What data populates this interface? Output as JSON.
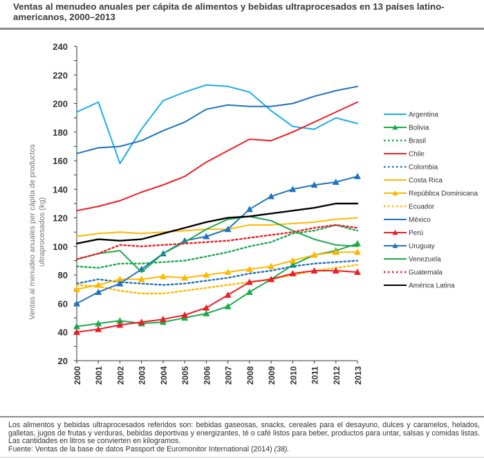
{
  "title": "Ventas al menudeo anuales per cápita de alimentos y bebidas ultraprocesados en 13 países latino-americanos, 2000–2013",
  "footnote": {
    "text": "Los alimentos y bebidas ultraprocesados referidos son: bebidas gaseosas, snacks, cereales para el desayuno, dulces y caramelos, helados, galletas, jugos de frutas y verduras, bebidas deportivas y energizantes, té o café listos para beber, productos para untar, salsas y comidas listas. Las cantidades en litros se convierten en kilogramos.",
    "source": "Fuente: Ventas de la base de datos Passport de Euromonitor International (2014)",
    "ref": "(38)."
  },
  "chart_data": {
    "type": "line",
    "title": "Ventas al menudeo anuales per cápita de alimentos y bebidas ultraprocesados en 13 países latino-americanos, 2000–2013",
    "xlabel": "",
    "ylabel": "Ventas al menudeo anuales per cápita de productos ultraprocesados (kg)",
    "ylim": [
      20,
      240
    ],
    "yticks": [
      20,
      40,
      60,
      80,
      100,
      120,
      140,
      160,
      180,
      200,
      220,
      240
    ],
    "grid": false,
    "legend": "right",
    "x": [
      "2000",
      "2001",
      "2002",
      "2003",
      "2004",
      "2005",
      "2006",
      "2007",
      "2008",
      "2009",
      "2010",
      "2011",
      "2012",
      "2013"
    ],
    "series": [
      {
        "name": "Argentina",
        "color": "#1BADEA",
        "style": "solid",
        "marker": "none",
        "values": [
          194,
          201,
          158,
          182,
          202,
          208,
          213,
          212,
          208,
          195,
          184,
          182,
          190,
          186
        ]
      },
      {
        "name": "Bolivia",
        "color": "#1AAA4B",
        "style": "solid",
        "marker": "triangle",
        "values": [
          44,
          46,
          48,
          46,
          47,
          50,
          53,
          58,
          68,
          77,
          87,
          94,
          97,
          102
        ]
      },
      {
        "name": "Brasil",
        "color": "#1AAA4B",
        "style": "dotted",
        "marker": "none",
        "values": [
          86,
          85,
          88,
          88,
          89,
          90,
          93,
          96,
          100,
          103,
          109,
          111,
          115,
          111
        ]
      },
      {
        "name": "Chile",
        "color": "#EE1C24",
        "style": "solid",
        "marker": "none",
        "values": [
          125,
          128,
          132,
          138,
          143,
          149,
          159,
          167,
          175,
          174,
          180,
          187,
          194,
          201
        ]
      },
      {
        "name": "Colombia",
        "color": "#1E73BE",
        "style": "dotted",
        "marker": "none",
        "values": [
          74,
          77,
          75,
          74,
          73,
          74,
          76,
          78,
          81,
          83,
          86,
          88,
          89,
          90
        ]
      },
      {
        "name": "Costa Rica",
        "color": "#FFB800",
        "style": "solid",
        "marker": "none",
        "values": [
          107,
          109,
          110,
          109,
          110,
          111,
          112,
          112,
          115,
          115,
          116,
          117,
          119,
          120
        ]
      },
      {
        "name": "República Dominicana",
        "color": "#FFB800",
        "style": "solid",
        "marker": "triangle",
        "values": [
          70,
          73,
          77,
          77,
          79,
          78,
          80,
          82,
          84,
          86,
          90,
          94,
          96,
          96
        ]
      },
      {
        "name": "Ecuador",
        "color": "#FFB800",
        "style": "dotted",
        "marker": "none",
        "values": [
          73,
          72,
          69,
          67,
          67,
          69,
          71,
          73,
          75,
          77,
          80,
          83,
          85,
          87
        ]
      },
      {
        "name": "México",
        "color": "#1E73BE",
        "style": "solid",
        "marker": "none",
        "values": [
          165,
          169,
          170,
          174,
          181,
          187,
          196,
          199,
          198,
          198,
          200,
          205,
          209,
          212
        ]
      },
      {
        "name": "Perú",
        "color": "#EE1C24",
        "style": "solid",
        "marker": "triangle",
        "values": [
          40,
          42,
          45,
          47,
          49,
          52,
          57,
          66,
          75,
          77,
          81,
          83,
          83,
          82
        ]
      },
      {
        "name": "Uruguay",
        "color": "#1E73BE",
        "style": "solid",
        "marker": "triangle",
        "values": [
          60,
          68,
          74,
          84,
          95,
          104,
          107,
          112,
          126,
          135,
          140,
          143,
          145,
          149
        ]
      },
      {
        "name": "Venezuela",
        "color": "#1AAA4B",
        "style": "solid",
        "marker": "none",
        "values": [
          91,
          95,
          97,
          82,
          95,
          103,
          112,
          119,
          121,
          118,
          111,
          105,
          101,
          100
        ]
      },
      {
        "name": "Guatemala",
        "color": "#EE1C24",
        "style": "dotted",
        "marker": "none",
        "values": [
          91,
          95,
          101,
          100,
          101,
          102,
          103,
          104,
          106,
          108,
          110,
          113,
          115,
          113
        ]
      },
      {
        "name": "América Latina",
        "color": "#000000",
        "style": "solid",
        "marker": "none",
        "values": [
          102,
          105,
          104,
          105,
          109,
          113,
          117,
          120,
          121,
          123,
          125,
          127,
          130,
          130
        ]
      }
    ]
  }
}
